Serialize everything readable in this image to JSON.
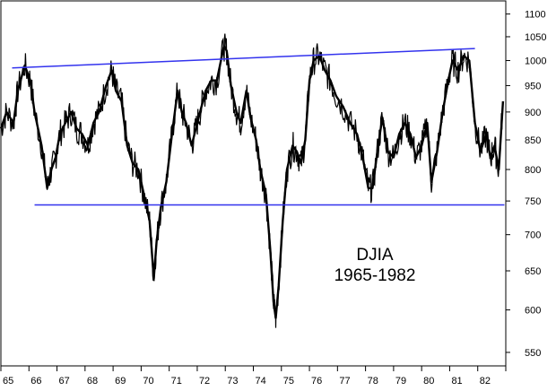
{
  "chart_data": {
    "type": "line",
    "annotation": [
      "DJIA",
      "1965-1982"
    ],
    "x_ticks": [
      "65",
      "66",
      "67",
      "68",
      "69",
      "70",
      "71",
      "72",
      "73",
      "74",
      "75",
      "76",
      "77",
      "78",
      "79",
      "80",
      "81",
      "82"
    ],
    "y_ticks": [
      550,
      600,
      650,
      700,
      750,
      800,
      850,
      900,
      950,
      1000,
      1050,
      1100
    ],
    "xlim": [
      1965,
      1983
    ],
    "ylim": [
      535,
      1130
    ],
    "y_scale": "log",
    "grid": false,
    "legend": "none",
    "series": [
      {
        "color": "#000000",
        "x": [
          1965.0,
          1965.2,
          1965.45,
          1965.6,
          1965.85,
          1966.05,
          1966.2,
          1966.45,
          1966.65,
          1966.8,
          1966.95,
          1967.1,
          1967.3,
          1967.5,
          1967.7,
          1967.9,
          1968.1,
          1968.3,
          1968.5,
          1968.75,
          1968.95,
          1969.1,
          1969.3,
          1969.5,
          1969.7,
          1969.9,
          1970.1,
          1970.3,
          1970.45,
          1970.55,
          1970.7,
          1970.9,
          1971.1,
          1971.3,
          1971.45,
          1971.6,
          1971.8,
          1971.95,
          1972.1,
          1972.3,
          1972.5,
          1972.7,
          1972.95,
          1973.05,
          1973.2,
          1973.4,
          1973.55,
          1973.75,
          1973.9,
          1974.1,
          1974.25,
          1974.45,
          1974.6,
          1974.72,
          1974.8,
          1974.9,
          1975.05,
          1975.2,
          1975.4,
          1975.55,
          1975.7,
          1975.85,
          1976.0,
          1976.15,
          1976.35,
          1976.55,
          1976.75,
          1976.95,
          1977.2,
          1977.45,
          1977.7,
          1977.9,
          1978.1,
          1978.25,
          1978.45,
          1978.6,
          1978.8,
          1979.0,
          1979.2,
          1979.4,
          1979.6,
          1979.8,
          1980.0,
          1980.2,
          1980.35,
          1980.55,
          1980.75,
          1980.95,
          1981.1,
          1981.3,
          1981.5,
          1981.7,
          1981.9,
          1982.1,
          1982.3,
          1982.45,
          1982.6,
          1982.75,
          1982.9
        ],
        "y": [
          870,
          900,
          880,
          940,
          990,
          960,
          900,
          840,
          770,
          800,
          820,
          860,
          880,
          900,
          870,
          860,
          840,
          880,
          900,
          950,
          980,
          940,
          920,
          840,
          810,
          800,
          760,
          720,
          640,
          690,
          740,
          780,
          860,
          940,
          900,
          880,
          840,
          870,
          900,
          940,
          960,
          960,
          1030,
          1020,
          950,
          900,
          880,
          940,
          890,
          850,
          800,
          760,
          680,
          610,
          590,
          630,
          720,
          800,
          840,
          830,
          810,
          850,
          960,
          1000,
          1010,
          980,
          960,
          930,
          910,
          880,
          860,
          820,
          770,
          770,
          840,
          890,
          830,
          820,
          860,
          880,
          860,
          820,
          840,
          880,
          780,
          830,
          900,
          960,
          1000,
          980,
          1010,
          1000,
          880,
          830,
          860,
          820,
          840,
          800,
          920
        ]
      }
    ],
    "trendlines": [
      {
        "color": "#3333ee",
        "x": [
          1965.4,
          1981.9
        ],
        "y": [
          985,
          1025
        ]
      },
      {
        "color": "#3333ee",
        "x": [
          1966.2,
          1982.95
        ],
        "y": [
          744,
          744
        ]
      }
    ]
  }
}
